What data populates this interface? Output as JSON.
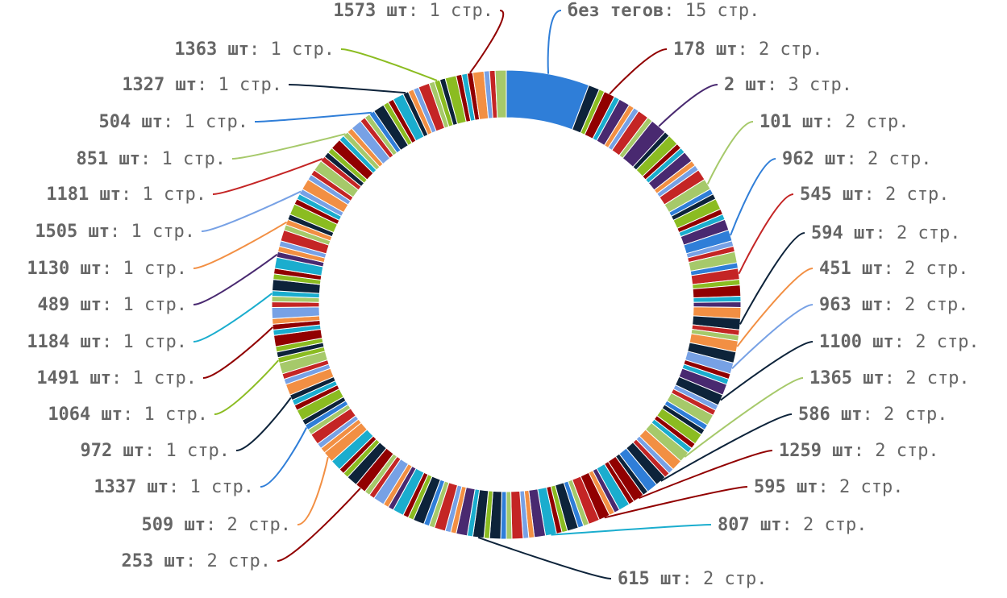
{
  "chart_data": {
    "type": "pie",
    "variant": "donut",
    "title": "",
    "total_segments": 180,
    "palette": [
      "#2f7ed8",
      "#0d233a",
      "#8bbc21",
      "#910000",
      "#1aadce",
      "#492970",
      "#f28f43",
      "#77a1e5",
      "#c42525",
      "#a6c96a"
    ],
    "slices": [
      {
        "name": "без тегов",
        "value": 15,
        "unit": "стр.",
        "label": true,
        "label_side": "right",
        "color": "#2f7ed8"
      },
      {
        "name": "178 шт",
        "value": 2,
        "unit": "стр.",
        "label": true,
        "label_side": "right",
        "color": "#910000"
      },
      {
        "name": "2 шт",
        "value": 3,
        "unit": "стр.",
        "label": true,
        "label_side": "right",
        "color": "#492970"
      },
      {
        "name": "101 шт",
        "value": 2,
        "unit": "стр.",
        "label": true,
        "label_side": "right",
        "color": "#a6c96a"
      },
      {
        "name": "962 шт",
        "value": 2,
        "unit": "стр.",
        "label": true,
        "label_side": "right",
        "color": "#2f7ed8"
      },
      {
        "name": "545 шт",
        "value": 2,
        "unit": "стр.",
        "label": true,
        "label_side": "right",
        "color": "#c42525"
      },
      {
        "name": "594 шт",
        "value": 2,
        "unit": "стр.",
        "label": true,
        "label_side": "right",
        "color": "#0d233a"
      },
      {
        "name": "451 шт",
        "value": 2,
        "unit": "стр.",
        "label": true,
        "label_side": "right",
        "color": "#f28f43"
      },
      {
        "name": "963 шт",
        "value": 2,
        "unit": "стр.",
        "label": true,
        "label_side": "right",
        "color": "#77a1e5"
      },
      {
        "name": "1100 шт",
        "value": 2,
        "unit": "стр.",
        "label": true,
        "label_side": "right",
        "color": "#0d233a"
      },
      {
        "name": "1365 шт",
        "value": 2,
        "unit": "стр.",
        "label": true,
        "label_side": "right",
        "color": "#a6c96a"
      },
      {
        "name": "586 шт",
        "value": 2,
        "unit": "стр.",
        "label": true,
        "label_side": "right",
        "color": "#0d233a"
      },
      {
        "name": "1259 шт",
        "value": 2,
        "unit": "стр.",
        "label": true,
        "label_side": "right",
        "color": "#910000"
      },
      {
        "name": "595 шт",
        "value": 2,
        "unit": "стр.",
        "label": true,
        "label_side": "right",
        "color": "#910000"
      },
      {
        "name": "807 шт",
        "value": 2,
        "unit": "стр.",
        "label": true,
        "label_side": "right",
        "color": "#1aadce"
      },
      {
        "name": "615 шт",
        "value": 2,
        "unit": "стр.",
        "label": true,
        "label_side": "right",
        "color": "#0d233a"
      },
      {
        "name": "253 шт",
        "value": 2,
        "unit": "стр.",
        "label": true,
        "label_side": "left",
        "color": "#910000"
      },
      {
        "name": "509 шт",
        "value": 2,
        "unit": "стр.",
        "label": true,
        "label_side": "left",
        "color": "#f28f43"
      },
      {
        "name": "1337 шт",
        "value": 1,
        "unit": "стр.",
        "label": true,
        "label_side": "left",
        "color": "#2f7ed8"
      },
      {
        "name": "972 шт",
        "value": 1,
        "unit": "стр.",
        "label": true,
        "label_side": "left",
        "color": "#0d233a"
      },
      {
        "name": "1064 шт",
        "value": 1,
        "unit": "стр.",
        "label": true,
        "label_side": "left",
        "color": "#8bbc21"
      },
      {
        "name": "1491 шт",
        "value": 1,
        "unit": "стр.",
        "label": true,
        "label_side": "left",
        "color": "#910000"
      },
      {
        "name": "1184 шт",
        "value": 1,
        "unit": "стр.",
        "label": true,
        "label_side": "left",
        "color": "#1aadce"
      },
      {
        "name": "489 шт",
        "value": 1,
        "unit": "стр.",
        "label": true,
        "label_side": "left",
        "color": "#492970"
      },
      {
        "name": "1130 шт",
        "value": 1,
        "unit": "стр.",
        "label": true,
        "label_side": "left",
        "color": "#f28f43"
      },
      {
        "name": "1505 шт",
        "value": 1,
        "unit": "стр.",
        "label": true,
        "label_side": "left",
        "color": "#77a1e5"
      },
      {
        "name": "1181 шт",
        "value": 1,
        "unit": "стр.",
        "label": true,
        "label_side": "left",
        "color": "#c42525"
      },
      {
        "name": "851 шт",
        "value": 1,
        "unit": "стр.",
        "label": true,
        "label_side": "left",
        "color": "#a6c96a"
      },
      {
        "name": "504 шт",
        "value": 1,
        "unit": "стр.",
        "label": true,
        "label_side": "left",
        "color": "#2f7ed8"
      },
      {
        "name": "1327 шт",
        "value": 1,
        "unit": "стр.",
        "label": true,
        "label_side": "left",
        "color": "#0d233a"
      },
      {
        "name": "1363 шт",
        "value": 1,
        "unit": "стр.",
        "label": true,
        "label_side": "left",
        "color": "#8bbc21"
      },
      {
        "name": "1573 шт",
        "value": 1,
        "unit": "стр.",
        "label": true,
        "label_side": "left",
        "color": "#910000"
      }
    ],
    "unlabeled_slice_values": [
      2,
      1
    ],
    "legend": "none",
    "data_labels": "outside with connector lines"
  }
}
